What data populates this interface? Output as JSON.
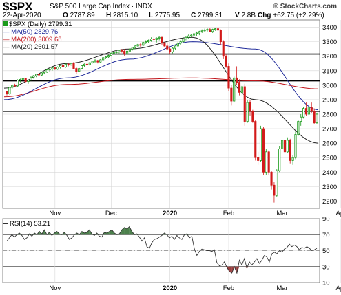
{
  "header": {
    "symbol": "$SPX",
    "description": "S&P 500 Large Cap Index",
    "exchange": "INDX",
    "brand": "© StockCharts.com",
    "date": "22-Apr-2020",
    "open_label": "O",
    "open": "2787.89",
    "high_label": "H",
    "high": "2815.10",
    "low_label": "L",
    "low": "2775.95",
    "close_label": "C",
    "close": "2799.31",
    "volume_label": "V",
    "volume": "2.8B",
    "change_label": "Chg",
    "change": "+62.75 (+2.29%)"
  },
  "legend": {
    "series_price": "$SPX (Daily) 2799.31",
    "series_ma50": "MA(50) 2829.76",
    "series_ma200": "MA(200) 3009.68",
    "series_ma20": "MA(20) 2601.57",
    "rsi": "RSI(14) 53.21"
  },
  "colors": {
    "up": "#1a9a1a",
    "down": "#d21a1a",
    "ma50": "#1f2a9a",
    "ma200": "#c0141a",
    "ma20": "#222222",
    "rsi_line": "#333333",
    "rsi_fill": "#2e6b2e",
    "grid": "#d6d6d6"
  },
  "chart_data": [
    {
      "type": "candlestick",
      "y_range": [
        2150,
        3450
      ],
      "y_ticks": [
        2200,
        2300,
        2400,
        2500,
        2600,
        2700,
        2800,
        2900,
        3000,
        3100,
        3200,
        3300,
        3400
      ],
      "x_labels": [
        "Nov",
        "Dec",
        "2020",
        "Feb",
        "Mar",
        "Apr"
      ],
      "x_label_index": [
        18,
        39,
        61,
        83,
        103,
        125
      ],
      "horizontal_lines": [
        3215,
        3030,
        2820
      ],
      "candles_ohlc_sampled": [
        [
          2955,
          2960,
          2930,
          2940
        ],
        [
          2940,
          2990,
          2935,
          2985
        ],
        [
          2985,
          3005,
          2975,
          3000
        ],
        [
          3000,
          3010,
          2985,
          2995
        ],
        [
          2995,
          3040,
          2990,
          3035
        ],
        [
          3035,
          3045,
          3020,
          3040
        ],
        [
          3040,
          3050,
          3030,
          3045
        ],
        [
          3045,
          3050,
          3020,
          3025
        ],
        [
          3025,
          3040,
          3010,
          3035
        ],
        [
          3035,
          3060,
          3030,
          3055
        ],
        [
          3055,
          3070,
          3045,
          3065
        ],
        [
          3065,
          3080,
          3055,
          3075
        ],
        [
          3075,
          3080,
          3060,
          3070
        ],
        [
          3070,
          3090,
          3065,
          3085
        ],
        [
          3085,
          3095,
          3075,
          3090
        ],
        [
          3090,
          3110,
          3085,
          3105
        ],
        [
          3105,
          3115,
          3095,
          3110
        ],
        [
          3110,
          3125,
          3100,
          3120
        ],
        [
          3120,
          3125,
          3105,
          3110
        ],
        [
          3110,
          3130,
          3105,
          3125
        ],
        [
          3125,
          3140,
          3115,
          3135
        ],
        [
          3135,
          3145,
          3120,
          3125
        ],
        [
          3125,
          3150,
          3120,
          3145
        ],
        [
          3145,
          3155,
          3130,
          3140
        ],
        [
          3140,
          3155,
          3135,
          3150
        ],
        [
          3150,
          3160,
          3110,
          3115
        ],
        [
          3115,
          3125,
          3080,
          3095
        ],
        [
          3095,
          3120,
          3090,
          3115
        ],
        [
          3115,
          3140,
          3110,
          3135
        ],
        [
          3135,
          3150,
          3125,
          3145
        ],
        [
          3145,
          3150,
          3130,
          3140
        ],
        [
          3140,
          3160,
          3135,
          3155
        ],
        [
          3155,
          3170,
          3150,
          3165
        ],
        [
          3165,
          3180,
          3155,
          3170
        ],
        [
          3170,
          3175,
          3150,
          3160
        ],
        [
          3160,
          3180,
          3155,
          3175
        ],
        [
          3175,
          3195,
          3170,
          3190
        ],
        [
          3190,
          3200,
          3180,
          3195
        ],
        [
          3195,
          3210,
          3185,
          3205
        ],
        [
          3205,
          3225,
          3200,
          3220
        ],
        [
          3220,
          3230,
          3210,
          3225
        ],
        [
          3225,
          3240,
          3215,
          3230
        ],
        [
          3230,
          3245,
          3220,
          3240
        ],
        [
          3240,
          3250,
          3225,
          3235
        ],
        [
          3235,
          3250,
          3200,
          3215
        ],
        [
          3215,
          3240,
          3210,
          3235
        ],
        [
          3235,
          3255,
          3230,
          3250
        ],
        [
          3250,
          3265,
          3240,
          3260
        ],
        [
          3260,
          3275,
          3250,
          3270
        ],
        [
          3270,
          3285,
          3260,
          3280
        ],
        [
          3280,
          3290,
          3265,
          3275
        ],
        [
          3275,
          3300,
          3270,
          3295
        ],
        [
          3295,
          3310,
          3285,
          3300
        ],
        [
          3300,
          3315,
          3290,
          3310
        ],
        [
          3310,
          3330,
          3300,
          3320
        ],
        [
          3320,
          3335,
          3305,
          3315
        ],
        [
          3315,
          3330,
          3295,
          3325
        ],
        [
          3325,
          3340,
          3310,
          3330
        ],
        [
          3330,
          3335,
          3280,
          3290
        ],
        [
          3290,
          3300,
          3260,
          3270
        ],
        [
          3270,
          3295,
          3240,
          3250
        ],
        [
          3250,
          3260,
          3215,
          3230
        ],
        [
          3230,
          3260,
          3220,
          3255
        ],
        [
          3255,
          3280,
          3245,
          3270
        ],
        [
          3270,
          3300,
          3260,
          3290
        ],
        [
          3290,
          3310,
          3280,
          3300
        ],
        [
          3300,
          3330,
          3295,
          3320
        ],
        [
          3320,
          3340,
          3310,
          3330
        ],
        [
          3330,
          3350,
          3320,
          3340
        ],
        [
          3340,
          3355,
          3330,
          3345
        ],
        [
          3345,
          3360,
          3335,
          3355
        ],
        [
          3355,
          3370,
          3340,
          3360
        ],
        [
          3360,
          3375,
          3345,
          3370
        ],
        [
          3370,
          3385,
          3360,
          3375
        ],
        [
          3375,
          3390,
          3365,
          3380
        ],
        [
          3380,
          3395,
          3370,
          3385
        ],
        [
          3385,
          3395,
          3365,
          3370
        ],
        [
          3370,
          3390,
          3360,
          3385
        ],
        [
          3385,
          3395,
          3375,
          3390
        ],
        [
          3390,
          3395,
          3370,
          3380
        ],
        [
          3380,
          3385,
          3280,
          3300
        ],
        [
          3300,
          3310,
          3180,
          3200
        ],
        [
          3200,
          3215,
          3120,
          3130
        ],
        [
          3130,
          3150,
          2960,
          2980
        ],
        [
          2980,
          3000,
          2860,
          2890
        ],
        [
          2890,
          3060,
          2880,
          3050
        ],
        [
          3050,
          3130,
          3000,
          3020
        ],
        [
          3020,
          3040,
          2930,
          2950
        ],
        [
          2950,
          3000,
          2920,
          2990
        ],
        [
          2990,
          3010,
          2720,
          2750
        ],
        [
          2750,
          2900,
          2740,
          2880
        ],
        [
          2880,
          2900,
          2790,
          2820
        ],
        [
          2820,
          2830,
          2740,
          2750
        ],
        [
          2750,
          2760,
          2480,
          2500
        ],
        [
          2500,
          2540,
          2450,
          2480
        ],
        [
          2480,
          2720,
          2470,
          2700
        ],
        [
          2700,
          2710,
          2380,
          2400
        ],
        [
          2400,
          2560,
          2380,
          2540
        ],
        [
          2540,
          2550,
          2380,
          2400
        ],
        [
          2400,
          2410,
          2280,
          2310
        ],
        [
          2310,
          2330,
          2190,
          2240
        ],
        [
          2240,
          2420,
          2230,
          2410
        ],
        [
          2410,
          2580,
          2400,
          2560
        ],
        [
          2560,
          2640,
          2500,
          2620
        ],
        [
          2620,
          2640,
          2520,
          2540
        ],
        [
          2540,
          2640,
          2530,
          2620
        ],
        [
          2620,
          2630,
          2460,
          2480
        ],
        [
          2480,
          2520,
          2450,
          2500
        ],
        [
          2500,
          2680,
          2490,
          2660
        ],
        [
          2660,
          2760,
          2650,
          2750
        ],
        [
          2750,
          2800,
          2720,
          2780
        ],
        [
          2780,
          2850,
          2770,
          2840
        ],
        [
          2840,
          2880,
          2790,
          2800
        ],
        [
          2800,
          2860,
          2790,
          2850
        ],
        [
          2850,
          2880,
          2810,
          2820
        ],
        [
          2820,
          2840,
          2730,
          2740
        ],
        [
          2740,
          2810,
          2730,
          2800
        ]
      ],
      "ma200": [
        2920,
        3005,
        3040,
        3050,
        3030,
        2975
      ],
      "ma50": [
        2900,
        3050,
        3180,
        3300,
        3250,
        2830
      ],
      "ma20": [
        2980,
        3150,
        3250,
        3330,
        2900,
        2600
      ]
    },
    {
      "type": "line",
      "name": "RSI(14)",
      "y_range": [
        10,
        90
      ],
      "y_ticks": [
        10,
        30,
        50,
        70,
        90
      ],
      "reference_lines": [
        30,
        70
      ],
      "midline": 50,
      "x_labels": [
        "Nov",
        "2020",
        "Feb",
        "Mar",
        "Apr"
      ],
      "x_label_index": [
        18,
        61,
        83,
        103,
        125
      ],
      "values_sampled": [
        62,
        66,
        70,
        67,
        70,
        72,
        69,
        64,
        66,
        71,
        68,
        72,
        70,
        74,
        71,
        76,
        70,
        73,
        69,
        72,
        74,
        71,
        70,
        73,
        69,
        64,
        66,
        70,
        72,
        70,
        74,
        72,
        73,
        76,
        71,
        69,
        72,
        68,
        67,
        73,
        72,
        74,
        76,
        72,
        70,
        71,
        76,
        79,
        77,
        80,
        74,
        70,
        71,
        67,
        62,
        66,
        55,
        53,
        60,
        64,
        65,
        67,
        69,
        72,
        70,
        66,
        68,
        64,
        69,
        66,
        64,
        70,
        71,
        66,
        68,
        52,
        44,
        49,
        52,
        51,
        50,
        50,
        49,
        51,
        35,
        31,
        32,
        36,
        29,
        24,
        22,
        30,
        22,
        38,
        32,
        40,
        28,
        36,
        32,
        36,
        40,
        34,
        38,
        44,
        42,
        36,
        46,
        48,
        46,
        50,
        48,
        52,
        54,
        58,
        55,
        57,
        55,
        51,
        54,
        53,
        55,
        53,
        50,
        51,
        53
      ]
    }
  ]
}
